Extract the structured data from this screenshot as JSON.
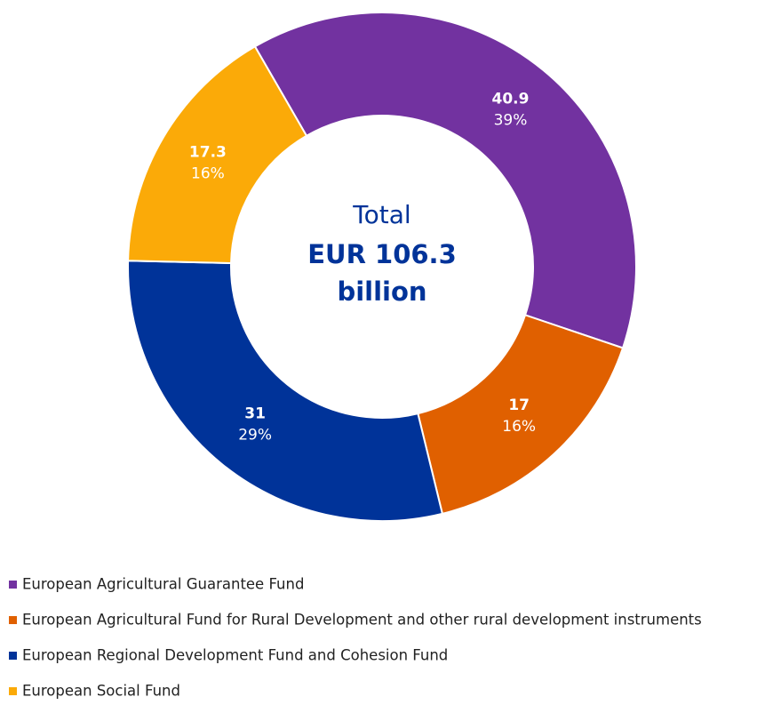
{
  "chart_data": {
    "type": "donut",
    "categories": [
      "European Agricultural Guarantee Fund",
      "European Agricultural Fund for Rural Development and other rural development instruments",
      "European Regional Development Fund and Cohesion Fund",
      "European Social Fund"
    ],
    "values": [
      40.9,
      17.0,
      31.0,
      17.3
    ],
    "percent_labels": [
      "39%",
      "16%",
      "29%",
      "16%"
    ],
    "colors": [
      "#7232a0",
      "#e06000",
      "#003399",
      "#fbaa08"
    ],
    "center_label": [
      "Total",
      "EUR 106.3",
      "billion"
    ]
  }
}
